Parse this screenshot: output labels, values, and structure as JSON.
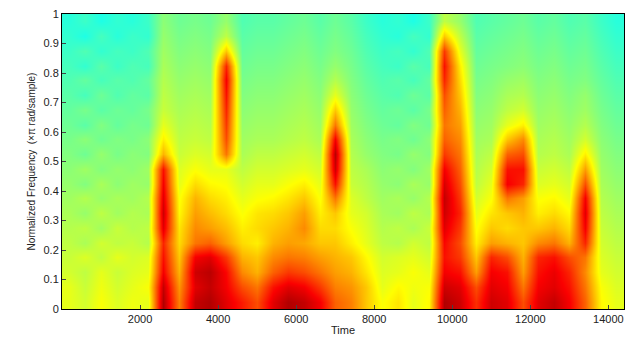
{
  "chart_data": {
    "type": "heatmap",
    "xlabel": "Time",
    "ylabel": "Normalized Frequency  (×π rad/sample)",
    "x": [
      200,
      600,
      1000,
      1400,
      1800,
      2200,
      2600,
      3000,
      3400,
      3800,
      4200,
      4600,
      5000,
      5400,
      5800,
      6200,
      6600,
      7000,
      7400,
      7800,
      8200,
      8600,
      9000,
      9400,
      9800,
      10200,
      10600,
      11000,
      11400,
      11800,
      12200,
      12600,
      13000,
      13400,
      13800,
      14200
    ],
    "y": [
      0.025,
      0.075,
      0.125,
      0.175,
      0.225,
      0.275,
      0.325,
      0.375,
      0.425,
      0.475,
      0.525,
      0.575,
      0.625,
      0.675,
      0.725,
      0.775,
      0.825,
      0.875,
      0.925,
      0.975
    ],
    "z": [
      [
        6.0,
        5.8,
        6.2,
        5.9,
        6.1,
        6.0,
        9.5,
        7.5,
        9.3,
        9.5,
        9.0,
        8.5,
        8.0,
        9.0,
        9.5,
        9.3,
        8.8,
        7.8,
        7.5,
        6.8,
        6.2,
        6.5,
        6.0,
        6.3,
        9.5,
        9.2,
        8.3,
        9.2,
        9.0,
        8.0,
        9.0,
        9.3,
        8.8,
        7.8,
        6.3,
        6.0
      ],
      [
        6.0,
        5.7,
        6.1,
        5.8,
        6.0,
        6.2,
        9.3,
        7.3,
        9.0,
        9.3,
        8.8,
        8.0,
        7.6,
        8.6,
        9.0,
        8.8,
        8.2,
        7.5,
        7.3,
        6.8,
        6.0,
        6.3,
        6.1,
        6.2,
        9.2,
        9.0,
        8.0,
        9.0,
        8.8,
        7.6,
        8.8,
        9.0,
        8.6,
        7.6,
        6.2,
        5.9
      ],
      [
        5.8,
        5.6,
        6.0,
        5.7,
        5.9,
        6.0,
        8.8,
        7.0,
        9.2,
        9.4,
        8.7,
        7.4,
        7.0,
        7.8,
        8.2,
        8.0,
        7.6,
        7.2,
        7.0,
        6.5,
        5.9,
        6.0,
        6.2,
        6.0,
        8.8,
        8.6,
        7.2,
        8.8,
        8.6,
        7.2,
        8.6,
        8.9,
        8.4,
        7.4,
        6.0,
        5.8
      ],
      [
        5.7,
        5.9,
        5.6,
        6.0,
        5.8,
        5.9,
        8.6,
        6.8,
        8.8,
        9.0,
        8.2,
        7.0,
        6.8,
        7.4,
        7.6,
        7.5,
        7.2,
        7.0,
        6.8,
        6.3,
        5.8,
        5.9,
        6.0,
        5.8,
        8.6,
        8.2,
        6.8,
        8.4,
        8.0,
        7.0,
        8.4,
        8.6,
        8.0,
        7.6,
        5.9,
        5.7
      ],
      [
        5.6,
        5.4,
        5.8,
        5.6,
        5.7,
        5.5,
        8.4,
        6.6,
        7.6,
        7.8,
        7.2,
        6.6,
        6.4,
        7.0,
        7.2,
        7.1,
        6.8,
        6.8,
        6.4,
        6.0,
        5.6,
        5.5,
        5.8,
        5.6,
        8.7,
        8.0,
        6.4,
        7.2,
        7.0,
        6.8,
        7.4,
        7.6,
        7.0,
        8.4,
        5.8,
        5.6
      ],
      [
        5.5,
        5.6,
        5.3,
        5.7,
        5.5,
        5.6,
        9.0,
        6.5,
        7.4,
        7.2,
        6.9,
        6.4,
        6.6,
        6.8,
        7.0,
        7.4,
        6.6,
        6.6,
        6.2,
        5.9,
        5.5,
        5.6,
        5.4,
        5.7,
        9.0,
        8.2,
        6.2,
        6.8,
        6.6,
        6.8,
        6.8,
        7.0,
        6.6,
        8.8,
        5.7,
        5.5
      ],
      [
        5.4,
        5.2,
        5.6,
        5.3,
        5.5,
        5.4,
        9.2,
        6.3,
        7.2,
        6.9,
        6.6,
        6.2,
        6.5,
        6.6,
        6.8,
        7.2,
        6.4,
        6.8,
        6.0,
        5.8,
        5.4,
        5.3,
        5.6,
        5.4,
        9.2,
        8.4,
        6.0,
        6.5,
        6.8,
        7.0,
        6.4,
        6.6,
        6.3,
        9.0,
        5.6,
        5.4
      ],
      [
        5.3,
        5.5,
        5.2,
        5.4,
        5.3,
        5.5,
        9.0,
        6.2,
        7.0,
        6.6,
        6.4,
        6.0,
        6.2,
        6.3,
        6.5,
        6.8,
        6.2,
        7.6,
        5.9,
        5.6,
        5.3,
        5.4,
        5.2,
        5.5,
        9.3,
        8.2,
        5.8,
        6.2,
        7.6,
        7.2,
        6.2,
        6.3,
        6.0,
        8.8,
        5.5,
        5.3
      ],
      [
        5.2,
        5.0,
        5.4,
        5.1,
        5.3,
        5.2,
        8.8,
        6.0,
        6.6,
        6.3,
        6.2,
        5.8,
        6.0,
        6.0,
        6.2,
        6.4,
        6.0,
        8.6,
        5.7,
        5.5,
        5.2,
        5.1,
        5.4,
        5.2,
        9.1,
        8.0,
        5.6,
        6.0,
        8.8,
        8.4,
        5.9,
        6.0,
        5.8,
        8.0,
        5.4,
        5.2
      ],
      [
        5.1,
        5.3,
        5.0,
        5.2,
        5.1,
        5.3,
        8.6,
        5.9,
        6.2,
        6.0,
        6.0,
        5.6,
        5.8,
        5.8,
        5.9,
        6.0,
        5.8,
        9.2,
        5.6,
        5.4,
        5.1,
        5.2,
        5.0,
        5.3,
        8.8,
        7.8,
        5.5,
        5.8,
        8.6,
        8.6,
        5.7,
        5.8,
        5.6,
        7.2,
        5.3,
        5.1
      ],
      [
        5.0,
        4.8,
        5.2,
        4.9,
        5.1,
        5.0,
        7.0,
        5.7,
        5.9,
        5.8,
        7.6,
        5.4,
        5.6,
        5.6,
        5.7,
        5.8,
        5.6,
        9.4,
        5.5,
        5.2,
        5.0,
        4.9,
        5.2,
        5.0,
        8.2,
        7.6,
        5.4,
        5.6,
        7.8,
        8.0,
        5.5,
        5.6,
        5.4,
        6.4,
        5.2,
        5.0
      ],
      [
        4.9,
        5.1,
        4.8,
        5.0,
        4.9,
        5.1,
        6.4,
        5.6,
        5.7,
        5.6,
        8.0,
        5.3,
        5.4,
        5.4,
        5.5,
        5.6,
        5.4,
        8.8,
        5.4,
        5.1,
        4.9,
        5.0,
        4.8,
        5.1,
        7.8,
        7.4,
        5.3,
        5.4,
        6.8,
        7.4,
        5.4,
        5.5,
        5.3,
        5.8,
        5.1,
        4.9
      ],
      [
        4.8,
        4.6,
        5.0,
        4.7,
        4.9,
        4.8,
        6.0,
        5.5,
        5.6,
        5.5,
        8.2,
        5.2,
        5.3,
        5.3,
        5.4,
        5.5,
        5.3,
        7.6,
        5.3,
        5.0,
        4.8,
        4.7,
        5.0,
        4.8,
        7.6,
        7.2,
        5.2,
        5.3,
        6.0,
        6.4,
        5.3,
        5.4,
        5.2,
        5.5,
        5.0,
        4.8
      ],
      [
        4.7,
        4.9,
        4.6,
        4.8,
        4.7,
        4.9,
        5.7,
        5.4,
        5.5,
        5.4,
        8.4,
        5.1,
        5.2,
        5.2,
        5.3,
        5.4,
        5.2,
        6.8,
        5.2,
        4.9,
        4.7,
        4.8,
        4.6,
        4.9,
        7.8,
        7.0,
        5.1,
        5.2,
        5.6,
        5.8,
        5.2,
        5.3,
        5.1,
        5.3,
        4.9,
        4.7
      ],
      [
        4.6,
        4.4,
        4.8,
        4.5,
        4.7,
        4.6,
        5.6,
        5.3,
        5.4,
        5.3,
        8.6,
        5.0,
        5.1,
        5.1,
        5.2,
        5.3,
        5.1,
        6.0,
        5.1,
        4.8,
        4.6,
        4.5,
        4.8,
        4.6,
        8.0,
        6.8,
        5.0,
        5.1,
        5.4,
        5.5,
        5.1,
        5.2,
        5.0,
        5.2,
        4.8,
        4.6
      ],
      [
        4.5,
        4.7,
        4.4,
        4.6,
        4.5,
        4.7,
        5.5,
        5.2,
        5.3,
        5.2,
        8.8,
        4.9,
        5.0,
        5.0,
        5.1,
        5.2,
        5.0,
        5.5,
        5.0,
        4.7,
        4.5,
        4.6,
        4.4,
        4.7,
        8.4,
        6.6,
        4.9,
        5.0,
        5.2,
        5.3,
        5.0,
        5.1,
        4.9,
        5.0,
        4.7,
        4.5
      ],
      [
        4.4,
        4.2,
        4.6,
        4.3,
        4.5,
        4.4,
        5.4,
        5.1,
        5.2,
        5.1,
        8.4,
        4.8,
        4.9,
        4.9,
        5.0,
        5.1,
        4.9,
        5.2,
        4.9,
        4.6,
        4.4,
        4.3,
        4.6,
        4.4,
        8.6,
        6.4,
        4.8,
        4.9,
        5.0,
        5.1,
        4.9,
        5.0,
        4.8,
        4.9,
        4.6,
        4.4
      ],
      [
        4.3,
        4.5,
        4.2,
        4.4,
        4.3,
        4.5,
        5.3,
        5.0,
        5.1,
        5.0,
        6.8,
        4.7,
        4.8,
        4.8,
        4.9,
        5.0,
        4.8,
        5.0,
        4.8,
        4.5,
        4.3,
        4.4,
        4.2,
        4.5,
        8.2,
        6.0,
        4.7,
        4.8,
        4.9,
        5.0,
        4.8,
        4.9,
        4.7,
        4.8,
        4.5,
        4.3
      ],
      [
        4.2,
        4.0,
        4.4,
        4.1,
        4.3,
        4.2,
        5.2,
        4.9,
        5.0,
        4.9,
        5.6,
        4.6,
        4.7,
        4.7,
        4.8,
        4.9,
        4.7,
        4.9,
        4.7,
        4.4,
        4.2,
        4.1,
        4.4,
        4.2,
        6.8,
        5.6,
        4.6,
        4.7,
        4.8,
        4.9,
        4.7,
        4.8,
        4.6,
        4.7,
        4.4,
        4.2
      ],
      [
        4.1,
        4.3,
        4.0,
        4.2,
        4.1,
        4.3,
        5.1,
        4.8,
        4.9,
        4.8,
        5.2,
        4.5,
        4.6,
        4.6,
        4.7,
        4.8,
        4.6,
        4.8,
        4.6,
        4.3,
        4.1,
        4.2,
        4.0,
        4.3,
        5.6,
        5.2,
        4.5,
        4.6,
        4.7,
        4.8,
        4.6,
        4.7,
        4.5,
        4.6,
        4.3,
        4.1
      ]
    ],
    "zlim": [
      0,
      10
    ],
    "xlim": [
      0,
      14400
    ],
    "ylim": [
      0,
      1
    ],
    "xticks": [
      2000,
      4000,
      6000,
      8000,
      10000,
      12000,
      14000
    ],
    "yticks": [
      0,
      0.1,
      0.2,
      0.3,
      0.4,
      0.5,
      0.6,
      0.7,
      0.8,
      0.9,
      1
    ],
    "grid": false
  }
}
